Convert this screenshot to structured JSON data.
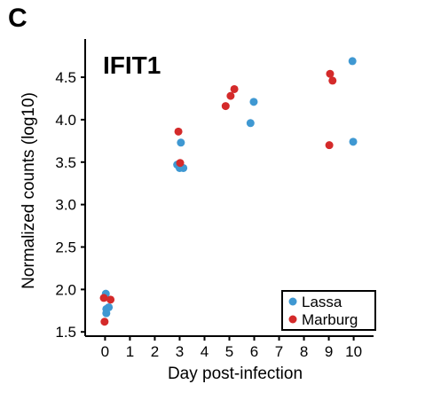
{
  "panel_label": "C",
  "colors": {
    "Lassa": "#3f98d2",
    "Marburg": "#d42a2a",
    "axis": "#000000"
  },
  "chart_data": {
    "type": "scatter",
    "title": "IFIT1",
    "xlabel": "Day post-infection",
    "ylabel": "Normalized counts (log10)",
    "xlim": [
      -0.8,
      10.8
    ],
    "ylim": [
      1.45,
      4.95
    ],
    "xticks": [
      0,
      1,
      2,
      3,
      4,
      5,
      6,
      7,
      8,
      9,
      10
    ],
    "xtick_labels": [
      "0",
      "1",
      "2",
      "3",
      "4",
      "5",
      "6",
      "7",
      "8",
      "9",
      "10"
    ],
    "yticks": [
      1.5,
      2.0,
      2.5,
      3.0,
      3.5,
      4.0,
      4.5
    ],
    "ytick_labels": [
      "1.5",
      "2.0",
      "2.5",
      "3.0",
      "3.5",
      "4.0",
      "4.5"
    ],
    "grid": false,
    "legend_position": "bottom-right",
    "series": [
      {
        "name": "Lassa",
        "points": [
          {
            "x": 0.03,
            "y": 1.95
          },
          {
            "x": 0.05,
            "y": 1.77
          },
          {
            "x": 0.15,
            "y": 1.79
          },
          {
            "x": 0.05,
            "y": 1.72
          },
          {
            "x": 2.9,
            "y": 3.47
          },
          {
            "x": 3.0,
            "y": 3.43
          },
          {
            "x": 3.05,
            "y": 3.44
          },
          {
            "x": 3.15,
            "y": 3.43
          },
          {
            "x": 3.05,
            "y": 3.73
          },
          {
            "x": 5.85,
            "y": 3.96
          },
          {
            "x": 5.98,
            "y": 4.21
          },
          {
            "x": 9.95,
            "y": 4.69
          },
          {
            "x": 9.98,
            "y": 3.74
          }
        ]
      },
      {
        "name": "Marburg",
        "points": [
          {
            "x": -0.05,
            "y": 1.9
          },
          {
            "x": 0.22,
            "y": 1.88
          },
          {
            "x": -0.02,
            "y": 1.62
          },
          {
            "x": 2.95,
            "y": 3.86
          },
          {
            "x": 3.02,
            "y": 3.49
          },
          {
            "x": 4.85,
            "y": 4.16
          },
          {
            "x": 5.05,
            "y": 4.28
          },
          {
            "x": 5.2,
            "y": 4.36
          },
          {
            "x": 9.05,
            "y": 4.54
          },
          {
            "x": 9.15,
            "y": 4.46
          },
          {
            "x": 9.02,
            "y": 3.7
          }
        ]
      }
    ]
  }
}
